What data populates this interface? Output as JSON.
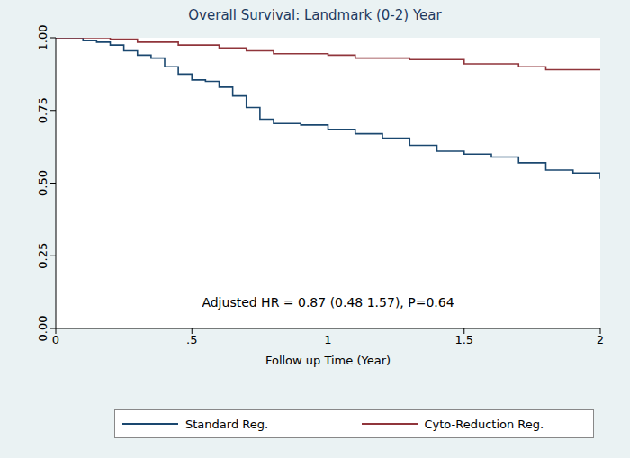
{
  "chart_data": {
    "type": "line",
    "title": "Overall Survival: Landmark (0-2) Year",
    "x_label": "Follow up Time (Year)",
    "annotation": "Adjusted HR = 0.87 (0.48  1.57), P=0.64",
    "xlim": [
      0,
      2
    ],
    "xticks": [
      0,
      {
        "value": 0.5,
        "label": ".5"
      },
      1,
      1.5,
      2
    ],
    "ylim": [
      0,
      1
    ],
    "yticks": [
      {
        "value": 0,
        "label": "0.00"
      },
      0.25,
      {
        "value": 0.5,
        "label": "0.50"
      },
      0.75,
      {
        "value": 1,
        "label": "1.00"
      }
    ],
    "grid": false,
    "legend": "bottom",
    "line_style": "step",
    "series": [
      {
        "name": "Standard Reg.",
        "color": "#1a476f",
        "x": [
          0,
          0.1,
          0.15,
          0.2,
          0.25,
          0.3,
          0.35,
          0.4,
          0.45,
          0.5,
          0.55,
          0.6,
          0.65,
          0.7,
          0.75,
          0.8,
          0.9,
          1.0,
          1.1,
          1.2,
          1.3,
          1.4,
          1.5,
          1.6,
          1.7,
          1.8,
          1.9,
          2.0
        ],
        "values": [
          1.0,
          0.99,
          0.985,
          0.975,
          0.955,
          0.94,
          0.93,
          0.9,
          0.875,
          0.855,
          0.85,
          0.83,
          0.8,
          0.76,
          0.72,
          0.705,
          0.7,
          0.685,
          0.67,
          0.655,
          0.63,
          0.61,
          0.6,
          0.59,
          0.57,
          0.545,
          0.535,
          0.515
        ]
      },
      {
        "name": "Cyto-Reduction Reg.",
        "color": "#90353b",
        "x": [
          0,
          0.15,
          0.2,
          0.3,
          0.45,
          0.6,
          0.7,
          0.8,
          1.0,
          1.1,
          1.3,
          1.5,
          1.7,
          1.8,
          2.0
        ],
        "values": [
          1.0,
          1.0,
          0.995,
          0.985,
          0.975,
          0.965,
          0.955,
          0.945,
          0.94,
          0.93,
          0.925,
          0.91,
          0.9,
          0.89,
          0.89
        ]
      }
    ]
  }
}
